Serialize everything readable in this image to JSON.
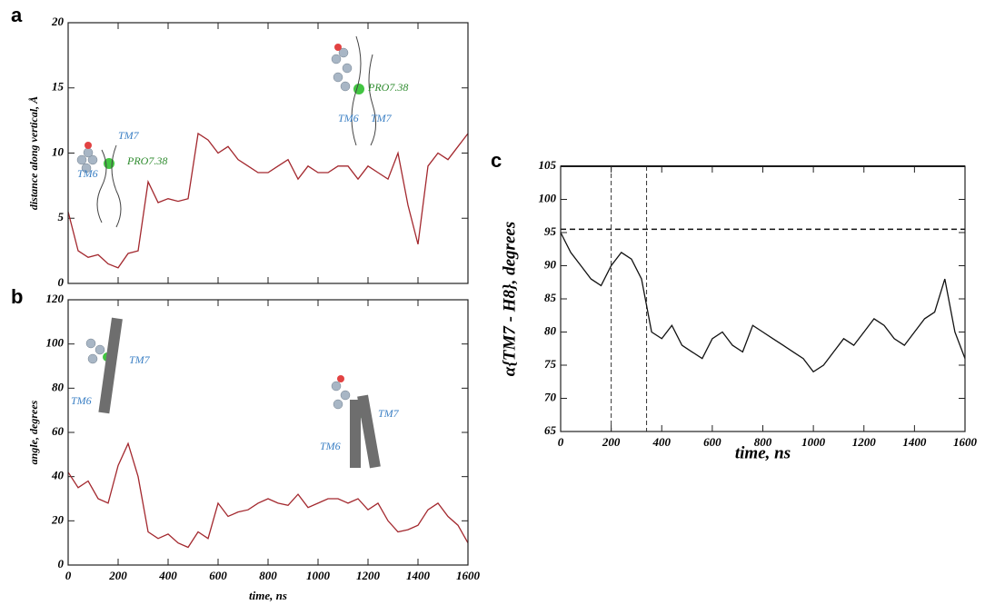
{
  "chart_data": [
    {
      "type": "line",
      "panel_label": "a",
      "ylabel": "distance along vertical, Å",
      "x": [
        0,
        40,
        80,
        120,
        160,
        200,
        240,
        280,
        320,
        360,
        400,
        440,
        480,
        520,
        560,
        600,
        640,
        680,
        720,
        760,
        800,
        840,
        880,
        920,
        960,
        1000,
        1040,
        1080,
        1120,
        1160,
        1200,
        1240,
        1280,
        1320,
        1360,
        1400,
        1440,
        1480,
        1520,
        1560,
        1600
      ],
      "values": [
        5.5,
        2.5,
        2,
        2.2,
        1.5,
        1.2,
        2.3,
        2.5,
        7.8,
        6.2,
        6.5,
        6.3,
        6.5,
        11.5,
        11,
        10,
        10.5,
        9.5,
        9,
        8.5,
        8.5,
        9,
        9.5,
        8,
        9,
        8.5,
        8.5,
        9,
        9,
        8,
        9,
        8.5,
        8,
        10,
        6,
        3,
        9,
        10,
        9.5,
        10.5,
        11.5
      ],
      "color": "#a3282e",
      "xlim": [
        0,
        1600
      ],
      "ylim": [
        0,
        20
      ],
      "xticks": [
        0,
        200,
        400,
        600,
        800,
        1000,
        1200,
        1400,
        1600
      ],
      "show_xtick_labels": false,
      "yticks": [
        0,
        5,
        10,
        15,
        20
      ],
      "annotations": [
        {
          "text": "TM7",
          "color": "#3a7fc4"
        },
        {
          "text": "PRO7.38",
          "color": "#2e8b2e"
        },
        {
          "text": "TM6",
          "color": "#3a7fc4"
        },
        {
          "text": "PRO7.38",
          "color": "#2e8b2e"
        },
        {
          "text": "TM6",
          "color": "#3a7fc4"
        },
        {
          "text": "TM7",
          "color": "#3a7fc4"
        }
      ]
    },
    {
      "type": "line",
      "panel_label": "b",
      "ylabel": "angle, degrees",
      "xlabel": "time, ns",
      "x": [
        0,
        40,
        80,
        120,
        160,
        200,
        240,
        280,
        320,
        360,
        400,
        440,
        480,
        520,
        560,
        600,
        640,
        680,
        720,
        760,
        800,
        840,
        880,
        920,
        960,
        1000,
        1040,
        1080,
        1120,
        1160,
        1200,
        1240,
        1280,
        1320,
        1360,
        1400,
        1440,
        1480,
        1520,
        1560,
        1600
      ],
      "values": [
        42,
        35,
        38,
        30,
        28,
        45,
        55,
        40,
        15,
        12,
        14,
        10,
        8,
        15,
        12,
        28,
        22,
        24,
        25,
        28,
        30,
        28,
        27,
        32,
        26,
        28,
        30,
        30,
        28,
        30,
        25,
        28,
        20,
        15,
        16,
        18,
        25,
        28,
        22,
        18,
        10
      ],
      "color": "#a3282e",
      "xlim": [
        0,
        1600
      ],
      "ylim": [
        0,
        120
      ],
      "xticks": [
        0,
        200,
        400,
        600,
        800,
        1000,
        1200,
        1400,
        1600
      ],
      "show_xtick_labels": true,
      "yticks": [
        0,
        20,
        40,
        60,
        80,
        100,
        120
      ],
      "annotations": [
        {
          "text": "TM7",
          "color": "#3a7fc4"
        },
        {
          "text": "TM6",
          "color": "#3a7fc4"
        },
        {
          "text": "TM7",
          "color": "#3a7fc4"
        },
        {
          "text": "TM6",
          "color": "#3a7fc4"
        }
      ]
    },
    {
      "type": "line",
      "panel_label": "c",
      "ylabel": "α{TM7 - H8}, degrees",
      "xlabel": "time, ns",
      "x": [
        0,
        40,
        80,
        120,
        160,
        200,
        240,
        280,
        320,
        360,
        400,
        440,
        480,
        520,
        560,
        600,
        640,
        680,
        720,
        760,
        800,
        840,
        880,
        920,
        960,
        1000,
        1040,
        1080,
        1120,
        1160,
        1200,
        1240,
        1280,
        1320,
        1360,
        1400,
        1440,
        1480,
        1520,
        1560,
        1600
      ],
      "values": [
        95,
        92,
        90,
        88,
        87,
        90,
        92,
        91,
        88,
        80,
        79,
        81,
        78,
        77,
        76,
        79,
        80,
        78,
        77,
        81,
        80,
        79,
        78,
        77,
        76,
        74,
        75,
        77,
        79,
        78,
        80,
        82,
        81,
        79,
        78,
        80,
        82,
        83,
        88,
        80,
        76
      ],
      "color": "#111111",
      "xlim": [
        0,
        1600
      ],
      "ylim": [
        65,
        105
      ],
      "xticks": [
        0,
        200,
        400,
        600,
        800,
        1000,
        1200,
        1400,
        1600
      ],
      "show_xtick_labels": true,
      "yticks": [
        65,
        70,
        75,
        80,
        85,
        90,
        95,
        100,
        105
      ],
      "hlines": [
        {
          "value": 105,
          "style": "solid"
        },
        {
          "value": 95.5,
          "style": "dashed"
        }
      ],
      "vlines": [
        {
          "value": 200,
          "style": "dashed"
        },
        {
          "value": 340,
          "style": "dashed"
        }
      ]
    }
  ]
}
